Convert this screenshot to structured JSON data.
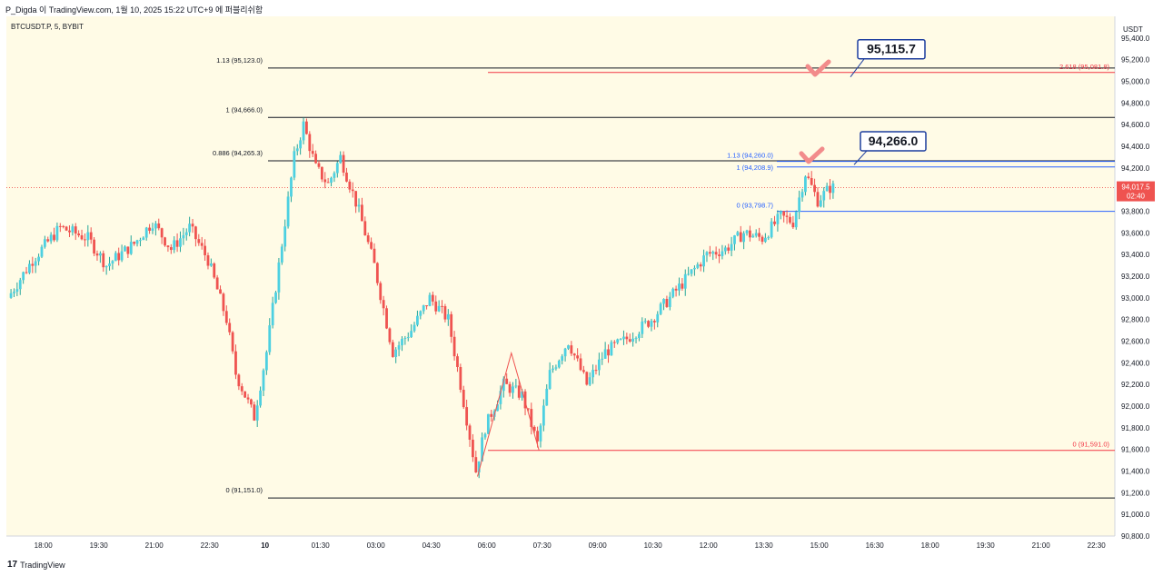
{
  "caption": "P_Digda 이 TradingView.com, 1월 10, 2025 15:22 UTC+9 에 퍼블리쉬함",
  "symbol": "BTCUSDT.P, 5, BYBIT",
  "currency": "USDT",
  "brand": "TradingView",
  "brand_mark": "17",
  "current_price": {
    "price": "94,017.5",
    "countdown": "02:40",
    "value": 94017.5
  },
  "colors": {
    "bg": "#fffbe6",
    "up": "#26a69a",
    "up_body": "#4dd0e1",
    "down": "#ef5350",
    "fib_black": "#131722",
    "fib_blue": "#2962ff",
    "fib_red": "#f23645",
    "callout_border": "#1c3d9e"
  },
  "fib_left": [
    {
      "label": "1.13 (95,123.0)",
      "value": 95123.0
    },
    {
      "label": "1 (94,666.0)",
      "value": 94666.0
    },
    {
      "label": "0.886 (94,265.3)",
      "value": 94265.3
    },
    {
      "label": "0 (91,151.0)",
      "value": 91151.0
    }
  ],
  "fib_red": [
    {
      "label": "2.618 (95,081.8)",
      "value": 95081.8
    },
    {
      "label": "0 (91,591.0)",
      "value": 91591.0
    }
  ],
  "fib_blue": [
    {
      "label": "1.13 (94,260.0)",
      "value": 94260.0
    },
    {
      "label": "1 (94,208.9)",
      "value": 94208.9
    },
    {
      "label": "0 (93,798.7)",
      "value": 93798.7
    }
  ],
  "callouts": [
    {
      "label": "95,115.7",
      "value": 95115.7
    },
    {
      "label": "94,266.0",
      "value": 94266.0
    }
  ],
  "chart_data": {
    "type": "candlestick",
    "title": "BTCUSDT.P, 5, BYBIT",
    "ylim": [
      90800,
      95600
    ],
    "y_ticks": [
      "90,800.0",
      "91,000.0",
      "91,200.0",
      "91,400.0",
      "91,600.0",
      "91,800.0",
      "92,000.0",
      "92,200.0",
      "92,400.0",
      "92,600.0",
      "92,800.0",
      "93,000.0",
      "93,200.0",
      "93,400.0",
      "93,600.0",
      "93,800.0",
      "94,000.0",
      "94,200.0",
      "94,400.0",
      "94,600.0",
      "94,800.0",
      "95,000.0",
      "95,200.0",
      "95,400.0"
    ],
    "x_ticks": [
      "18:00",
      "19:30",
      "21:00",
      "22:30",
      "10",
      "01:30",
      "03:00",
      "04:30",
      "06:00",
      "07:30",
      "09:00",
      "10:30",
      "12:00",
      "13:30",
      "15:00",
      "16:30",
      "18:00",
      "19:30",
      "21:00",
      "22:30"
    ],
    "price_path": [
      {
        "t": "17:05",
        "price": 93000
      },
      {
        "t": "17:45",
        "price": 93350
      },
      {
        "t": "18:30",
        "price": 93650
      },
      {
        "t": "19:15",
        "price": 93550
      },
      {
        "t": "19:45",
        "price": 93300
      },
      {
        "t": "20:30",
        "price": 93500
      },
      {
        "t": "21:00",
        "price": 93700
      },
      {
        "t": "21:30",
        "price": 93450
      },
      {
        "t": "22:00",
        "price": 93650
      },
      {
        "t": "22:30",
        "price": 93350
      },
      {
        "t": "23:00",
        "price": 92800
      },
      {
        "t": "23:15",
        "price": 92300
      },
      {
        "t": "23:45",
        "price": 91900
      },
      {
        "t": "00:05",
        "price": 92500
      },
      {
        "t": "00:30",
        "price": 93500
      },
      {
        "t": "00:50",
        "price": 94300
      },
      {
        "t": "01:05",
        "price": 94600
      },
      {
        "t": "01:25",
        "price": 94200
      },
      {
        "t": "01:45",
        "price": 94050
      },
      {
        "t": "02:05",
        "price": 94300
      },
      {
        "t": "02:35",
        "price": 93800
      },
      {
        "t": "03:00",
        "price": 93300
      },
      {
        "t": "03:30",
        "price": 92500
      },
      {
        "t": "04:00",
        "price": 92700
      },
      {
        "t": "04:30",
        "price": 93000
      },
      {
        "t": "05:00",
        "price": 92800
      },
      {
        "t": "05:20",
        "price": 92200
      },
      {
        "t": "05:45",
        "price": 91400
      },
      {
        "t": "06:00",
        "price": 91800
      },
      {
        "t": "06:30",
        "price": 92200
      },
      {
        "t": "07:00",
        "price": 92100
      },
      {
        "t": "07:25",
        "price": 91650
      },
      {
        "t": "07:45",
        "price": 92300
      },
      {
        "t": "08:15",
        "price": 92600
      },
      {
        "t": "08:45",
        "price": 92200
      },
      {
        "t": "09:15",
        "price": 92500
      },
      {
        "t": "09:45",
        "price": 92600
      },
      {
        "t": "10:30",
        "price": 92800
      },
      {
        "t": "11:00",
        "price": 93000
      },
      {
        "t": "11:30",
        "price": 93200
      },
      {
        "t": "12:00",
        "price": 93400
      },
      {
        "t": "12:30",
        "price": 93450
      },
      {
        "t": "13:00",
        "price": 93600
      },
      {
        "t": "13:30",
        "price": 93550
      },
      {
        "t": "14:00",
        "price": 93750
      },
      {
        "t": "14:20",
        "price": 93700
      },
      {
        "t": "14:40",
        "price": 94150
      },
      {
        "t": "15:00",
        "price": 93900
      },
      {
        "t": "15:20",
        "price": 94017.5
      }
    ]
  }
}
